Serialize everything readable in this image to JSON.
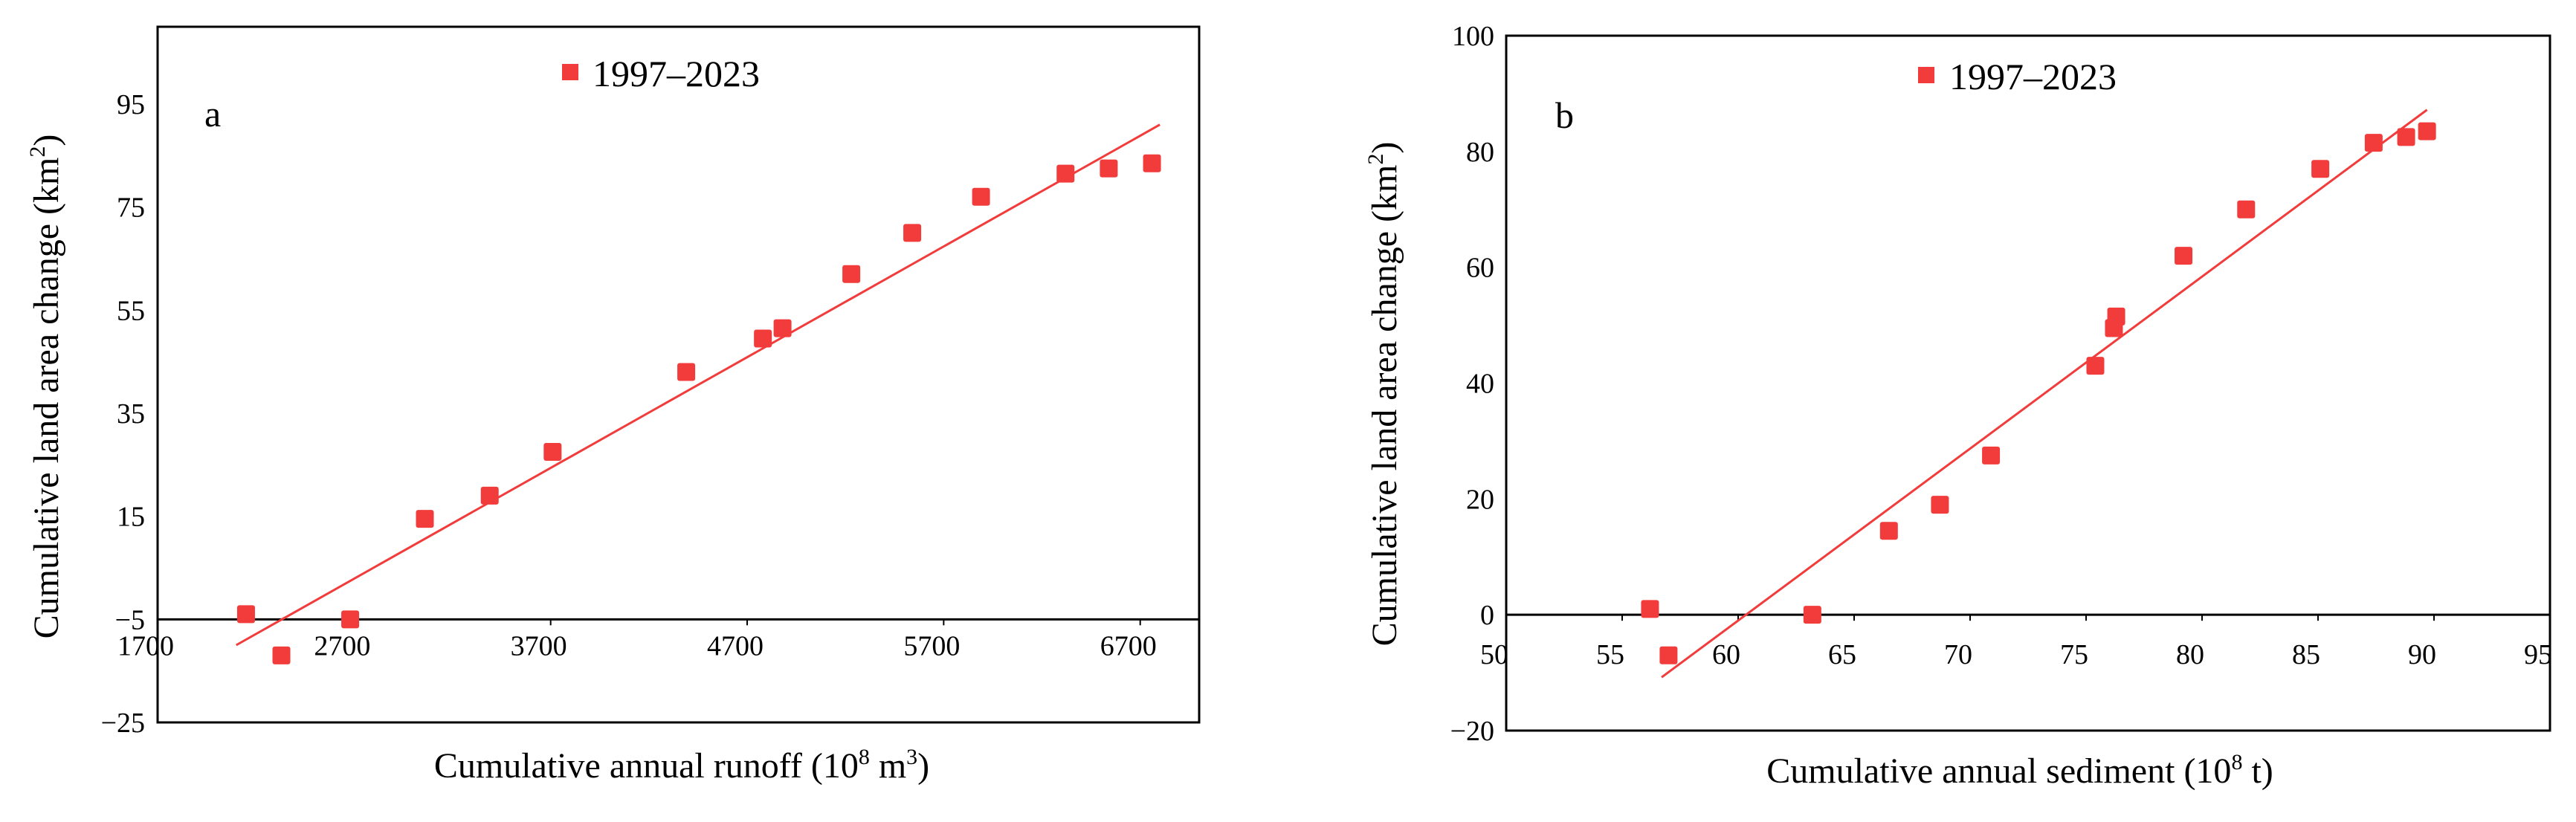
{
  "chart_data": [
    {
      "type": "scatter",
      "panel_label": "a",
      "legend": "1997–2023",
      "xlabel": "Cumulative annual runoff (10",
      "xlabel_sup": "8",
      "xlabel_tail": " m",
      "xlabel_sup2": "3",
      "xlabel_end": ")",
      "ylabel": "Cumulative land area change (km",
      "ylabel_sup": "2",
      "ylabel_end": ")",
      "xlim": [
        1700,
        7000
      ],
      "ylim": [
        -25,
        110
      ],
      "x_axis_crossing_y": -5,
      "xticks": [
        1700,
        2700,
        3700,
        4700,
        5700,
        6700
      ],
      "xtick_labels": [
        "1700",
        "2700",
        "3700",
        "4700",
        "5700",
        "6700"
      ],
      "yticks": [
        -25,
        -5,
        15,
        35,
        55,
        75,
        95
      ],
      "ytick_labels": [
        "−25",
        "−5",
        "15",
        "35",
        "55",
        "75",
        "95"
      ],
      "series": [
        {
          "name": "1997–2023",
          "color": "#f23c3c",
          "x": [
            2150,
            2330,
            2680,
            3060,
            3390,
            3710,
            4390,
            4780,
            4880,
            5230,
            5540,
            5890,
            6320,
            6540,
            6760
          ],
          "y": [
            -4,
            -12,
            -5,
            14.5,
            19,
            27.5,
            43,
            49.5,
            51.5,
            62,
            70,
            77,
            81.5,
            82.5,
            83.5
          ]
        }
      ],
      "trendline": {
        "x": [
          2100,
          6800
        ],
        "y": [
          -10,
          91
        ]
      }
    },
    {
      "type": "scatter",
      "panel_label": "b",
      "legend": "1997–2023",
      "xlabel": "Cumulative annual sediment (10",
      "xlabel_sup": "8",
      "xlabel_tail": " t",
      "xlabel_sup2": "",
      "xlabel_end": ")",
      "ylabel": "Cumulative land area change (km",
      "ylabel_sup": "2",
      "ylabel_end": ")",
      "xlim": [
        50,
        95
      ],
      "ylim": [
        -20,
        100
      ],
      "x_axis_crossing_y": 0,
      "xticks": [
        50,
        55,
        60,
        65,
        70,
        75,
        80,
        85,
        90,
        95
      ],
      "xtick_labels": [
        "50",
        "55",
        "60",
        "65",
        "70",
        "75",
        "80",
        "85",
        "90",
        "95"
      ],
      "yticks": [
        -20,
        0,
        20,
        40,
        60,
        80,
        100
      ],
      "ytick_labels": [
        "−20",
        "0",
        "20",
        "40",
        "60",
        "80",
        "100"
      ],
      "series": [
        {
          "name": "1997–2023",
          "color": "#f23c3c",
          "x": [
            56.2,
            57.0,
            63.2,
            66.5,
            68.7,
            70.9,
            75.4,
            76.2,
            76.3,
            79.2,
            81.9,
            85.1,
            87.4,
            88.8,
            89.7
          ],
          "y": [
            1,
            -7,
            0,
            14.5,
            19,
            27.5,
            43,
            49.5,
            51.5,
            62,
            70,
            77,
            81.5,
            82.5,
            83.5
          ]
        }
      ],
      "trendline": {
        "x": [
          56.7,
          89.7
        ],
        "y": [
          -10.8,
          87.2
        ]
      }
    }
  ]
}
